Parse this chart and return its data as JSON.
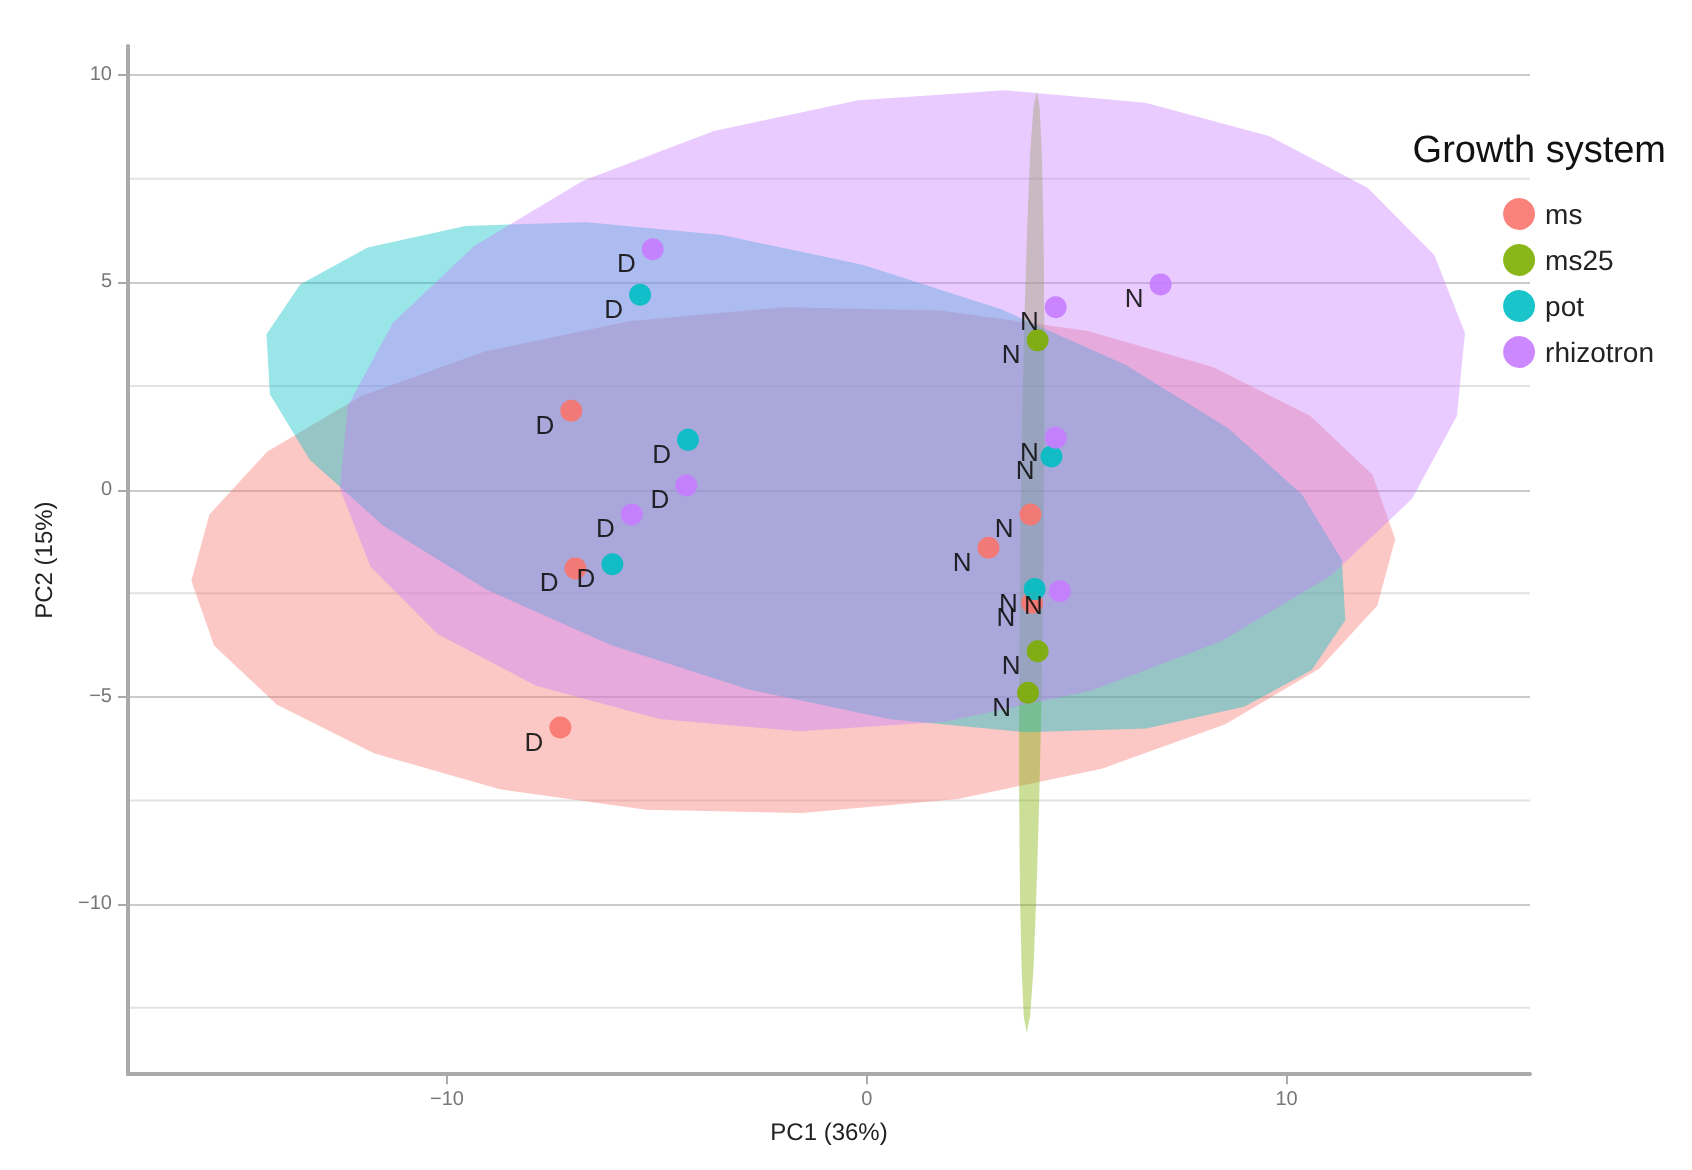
{
  "chart_data": {
    "type": "scatter",
    "xlabel": "PC1 (36%)",
    "ylabel": "PC2 (15%)",
    "legend_title": "Growth system",
    "legend": "top right",
    "grid": "y",
    "marker": "circle",
    "xlim": [
      -17.6,
      15.8
    ],
    "xticks": [
      {
        "value": -10,
        "label": "−10"
      },
      0,
      10
    ],
    "ylim": [
      -14.1,
      10.7
    ],
    "yticks": [
      {
        "value": -10,
        "label": "−10"
      },
      {
        "value": -5,
        "label": "−5"
      },
      0,
      5,
      10
    ],
    "series": [
      {
        "type": "area",
        "marker": "none",
        "color": "#f8766d",
        "x": [
          12.59,
          12.05,
          10.56,
          8.24,
          5.24,
          1.75,
          -1.96,
          -5.67,
          -9.1,
          -12.04,
          -14.28,
          -15.66,
          -16.09,
          -15.55,
          -14.06,
          -11.74,
          -8.74,
          -5.25,
          -1.54,
          2.17,
          5.6,
          8.54,
          10.78,
          12.16
        ],
        "values": [
          -1.2,
          0.36,
          1.78,
          2.96,
          3.83,
          4.32,
          4.4,
          4.06,
          3.33,
          2.26,
          0.92,
          -0.6,
          -2.2,
          -3.76,
          -5.18,
          -6.36,
          -7.23,
          -7.72,
          -7.8,
          -7.46,
          -6.73,
          -5.66,
          -4.32,
          -2.8
        ]
      },
      {
        "type": "area",
        "marker": "none",
        "color": "#7cae00",
        "x": [
          4.05,
          3.97,
          3.89,
          3.82,
          3.75,
          3.69,
          3.65,
          3.63,
          3.63,
          3.65,
          3.69,
          3.74,
          3.81,
          3.89,
          3.97,
          4.04,
          4.11,
          4.17,
          4.21,
          4.23,
          4.23,
          4.21,
          4.17,
          4.12
        ],
        "values": [
          9.6,
          9.21,
          8.08,
          6.27,
          3.93,
          1.19,
          -1.75,
          -4.69,
          -7.43,
          -9.77,
          -11.58,
          -12.71,
          -13.1,
          -12.71,
          -11.58,
          -9.77,
          -7.43,
          -4.69,
          -1.75,
          1.19,
          3.93,
          6.27,
          8.08,
          9.21
        ]
      },
      {
        "type": "area",
        "marker": "none",
        "color": "#00bfc4",
        "x": [
          11.4,
          11.32,
          10.37,
          8.61,
          6.16,
          3.2,
          -0.08,
          -3.45,
          -6.68,
          -9.56,
          -11.89,
          -13.5,
          -14.3,
          -14.22,
          -13.27,
          -11.51,
          -9.06,
          -6.1,
          -2.82,
          0.55,
          3.78,
          6.66,
          8.99,
          10.6
        ],
        "values": [
          -3.15,
          -1.7,
          -0.12,
          1.48,
          3.01,
          4.35,
          5.42,
          6.14,
          6.45,
          6.36,
          5.84,
          4.95,
          3.75,
          2.3,
          0.72,
          -0.88,
          -2.41,
          -3.75,
          -4.82,
          -5.54,
          -5.85,
          -5.76,
          -5.24,
          -4.35
        ]
      },
      {
        "type": "area",
        "marker": "none",
        "color": "#c77cff",
        "x": [
          14.25,
          13.52,
          11.93,
          9.58,
          6.64,
          3.3,
          -0.2,
          -3.64,
          -6.76,
          -9.36,
          -11.29,
          -12.36,
          -12.55,
          -11.82,
          -10.23,
          -7.88,
          -4.94,
          -1.6,
          1.9,
          5.34,
          8.46,
          11.06,
          12.99,
          14.06
        ],
        "values": [
          3.78,
          5.66,
          7.28,
          8.53,
          9.33,
          9.63,
          9.39,
          8.65,
          7.45,
          5.87,
          4.02,
          2.02,
          0.02,
          -1.86,
          -3.48,
          -4.73,
          -5.53,
          -5.83,
          -5.59,
          -4.85,
          -3.65,
          -2.07,
          -0.22,
          1.78
        ]
      },
      {
        "name": "ms",
        "color": "#f8766d",
        "x": [
          -7.04,
          -6.94,
          -7.3,
          3.9,
          2.9,
          3.94
        ],
        "values": [
          1.9,
          -1.9,
          -5.74,
          -0.6,
          -1.4,
          -2.73
        ],
        "value_labels": [
          "D",
          "D",
          "D",
          "N",
          "N",
          "N"
        ]
      },
      {
        "name": "ms25",
        "color": "#7cae00",
        "x": [
          4.07,
          4.07,
          3.84
        ],
        "values": [
          3.6,
          -3.9,
          -4.9
        ],
        "value_labels": [
          "N",
          "N",
          "N"
        ]
      },
      {
        "name": "pot",
        "color": "#00bfc4",
        "x": [
          -5.4,
          -4.26,
          -6.06,
          4.4,
          4.0
        ],
        "values": [
          4.7,
          1.2,
          -1.8,
          0.8,
          -2.4
        ],
        "value_labels": [
          "D",
          "D",
          "D",
          "N",
          "N"
        ]
      },
      {
        "name": "rhizotron",
        "color": "#c77cff",
        "x": [
          -5.1,
          -4.3,
          -5.6,
          4.5,
          7.0,
          4.5,
          4.6
        ],
        "values": [
          5.8,
          0.1,
          -0.6,
          4.4,
          4.95,
          1.25,
          -2.45
        ],
        "value_labels": [
          "D",
          "D",
          "D",
          "N",
          "N",
          "N",
          "N"
        ]
      }
    ]
  }
}
